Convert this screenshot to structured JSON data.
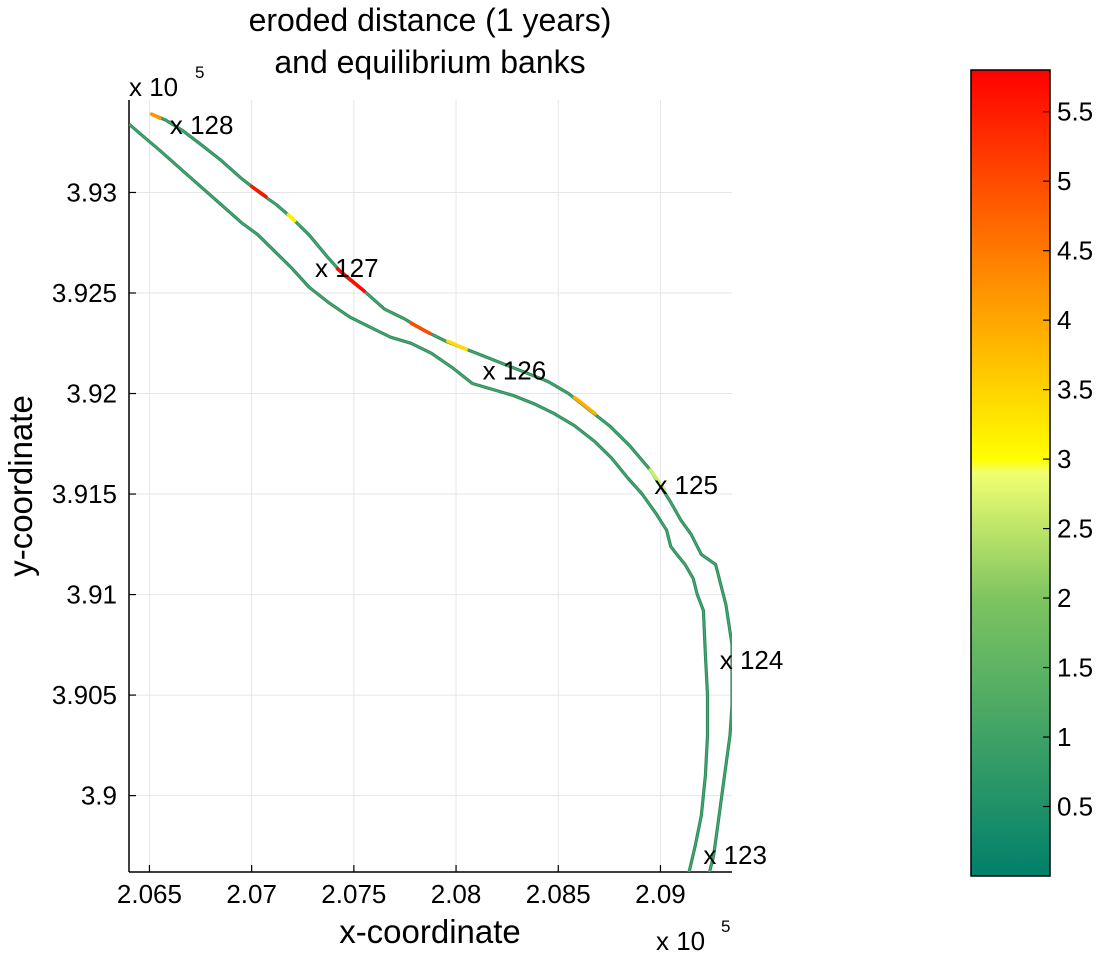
{
  "chart_data": {
    "type": "line",
    "title_lines": [
      "eroded distance (1 years)",
      "and equilibrium banks"
    ],
    "xlabel": "x-coordinate",
    "ylabel": "y-coordinate",
    "x_exponent_label": "x 10",
    "x_exponent_power": "5",
    "y_exponent_label": "x 10",
    "y_exponent_power": "5",
    "xlim": [
      2.064,
      2.0935
    ],
    "ylim": [
      3.8962,
      3.9346
    ],
    "x_ticks": [
      2.065,
      2.07,
      2.075,
      2.08,
      2.085,
      2.09
    ],
    "x_tick_labels": [
      "2.065",
      "2.07",
      "2.075",
      "2.08",
      "2.085",
      "2.09"
    ],
    "y_ticks": [
      3.9,
      3.905,
      3.91,
      3.915,
      3.92,
      3.925,
      3.93
    ],
    "y_tick_labels": [
      "3.9",
      "3.905",
      "3.91",
      "3.915",
      "3.92",
      "3.925",
      "3.93"
    ],
    "grid": true,
    "colorbar": {
      "range": [
        0,
        5.8
      ],
      "ticks": [
        0.5,
        1,
        1.5,
        2,
        2.5,
        3,
        3.5,
        4,
        4.5,
        5,
        5.5
      ],
      "tick_labels": [
        "0.5",
        "1",
        "1.5",
        "2",
        "2.5",
        "3",
        "3.5",
        "4",
        "4.5",
        "5",
        "5.5"
      ],
      "colors": [
        "#00806b",
        "#7ec460",
        "#f0ff70",
        "#ffff00",
        "#ff8c00",
        "#ff0000"
      ],
      "stops": [
        0,
        2.0,
        2.9,
        3.0,
        4.3,
        5.8
      ]
    },
    "bank_colors": [
      "#2e8b57",
      "#4caf7d"
    ],
    "series": [
      {
        "role": "left-bank",
        "x": [
          2.0651,
          2.0658,
          2.0666,
          2.0675,
          2.0685,
          2.0695,
          2.0705,
          2.0712,
          2.072,
          2.0728,
          2.0737,
          2.0745,
          2.0755,
          2.0765,
          2.0775,
          2.0785,
          2.0795,
          2.0805,
          2.0815,
          2.0825,
          2.0835,
          2.0845,
          2.0855,
          2.0865,
          2.0875,
          2.0885,
          2.0895,
          2.09,
          2.0905,
          2.091,
          2.0915,
          2.092,
          2.0927,
          2.0932,
          2.0935,
          2.0935,
          2.0935,
          2.0934,
          2.0932,
          2.093,
          2.0928,
          2.0926,
          2.0924,
          2.0922
        ],
        "y": [
          3.9339,
          3.9336,
          3.9331,
          3.9324,
          3.9316,
          3.9307,
          3.9299,
          3.9294,
          3.9287,
          3.9279,
          3.9268,
          3.9259,
          3.9251,
          3.9242,
          3.9237,
          3.9231,
          3.9226,
          3.9222,
          3.9218,
          3.9214,
          3.921,
          3.9206,
          3.92,
          3.9192,
          3.9184,
          3.9174,
          3.9162,
          3.9154,
          3.9146,
          3.9137,
          3.913,
          3.912,
          3.9115,
          3.9095,
          3.9075,
          3.906,
          3.9045,
          3.903,
          3.9015,
          3.9,
          3.8985,
          3.897,
          3.8962,
          3.8955
        ]
      },
      {
        "role": "right-bank",
        "x": [
          2.064,
          2.0648,
          2.0655,
          2.0665,
          2.0675,
          2.0685,
          2.0695,
          2.0703,
          2.0712,
          2.072,
          2.0728,
          2.0738,
          2.0748,
          2.0758,
          2.0768,
          2.0778,
          2.0788,
          2.0798,
          2.0808,
          2.0818,
          2.0828,
          2.0838,
          2.0848,
          2.0858,
          2.0868,
          2.0876,
          2.0884,
          2.0891,
          2.0898,
          2.0903,
          2.0905,
          2.0908,
          2.0912,
          2.0916,
          2.0918,
          2.0921,
          2.0922,
          2.0923,
          2.0923,
          2.0922,
          2.092,
          2.0917,
          2.0914,
          2.0912
        ],
        "y": [
          3.9334,
          3.9327,
          3.9321,
          3.9312,
          3.9303,
          3.9294,
          3.9285,
          3.9279,
          3.927,
          3.9262,
          3.9253,
          3.9245,
          3.9238,
          3.9233,
          3.9228,
          3.9225,
          3.922,
          3.9213,
          3.9205,
          3.9202,
          3.9199,
          3.9195,
          3.919,
          3.9184,
          3.9176,
          3.9168,
          3.9158,
          3.915,
          3.914,
          3.9132,
          3.9124,
          3.912,
          3.9115,
          3.9108,
          3.91,
          3.9092,
          3.907,
          3.905,
          3.903,
          3.901,
          3.899,
          3.8975,
          3.8962,
          3.8955
        ]
      }
    ],
    "eroded_segments": [
      {
        "x0": 2.0651,
        "y0": 3.9339,
        "x1": 2.0655,
        "y1": 3.9337,
        "value": 4.2
      },
      {
        "x0": 2.07,
        "y0": 3.9303,
        "x1": 2.0707,
        "y1": 3.9298,
        "value": 5.6
      },
      {
        "x0": 2.0718,
        "y0": 3.9289,
        "x1": 2.0721,
        "y1": 3.9286,
        "value": 3.2
      },
      {
        "x0": 2.0742,
        "y0": 3.9262,
        "x1": 2.0755,
        "y1": 3.9251,
        "value": 5.7
      },
      {
        "x0": 2.0778,
        "y0": 3.9235,
        "x1": 2.0787,
        "y1": 3.923,
        "value": 5.0
      },
      {
        "x0": 2.0796,
        "y0": 3.9226,
        "x1": 2.0805,
        "y1": 3.9222,
        "value": 3.4
      },
      {
        "x0": 2.0858,
        "y0": 3.9198,
        "x1": 2.0868,
        "y1": 3.919,
        "value": 3.9
      },
      {
        "x0": 2.0895,
        "y0": 3.9162,
        "x1": 2.0902,
        "y1": 3.9152,
        "value": 2.6
      }
    ],
    "annotations": [
      {
        "label": "x 128",
        "x": 2.066,
        "y": 3.9329
      },
      {
        "label": "x 127",
        "x": 2.0731,
        "y": 3.9258
      },
      {
        "label": "x 126",
        "x": 2.0813,
        "y": 3.9207
      },
      {
        "label": "x 125",
        "x": 2.0897,
        "y": 3.915
      },
      {
        "label": "x 124",
        "x": 2.0929,
        "y": 3.9063
      },
      {
        "label": "x 123",
        "x": 2.0921,
        "y": 3.8966
      }
    ]
  }
}
